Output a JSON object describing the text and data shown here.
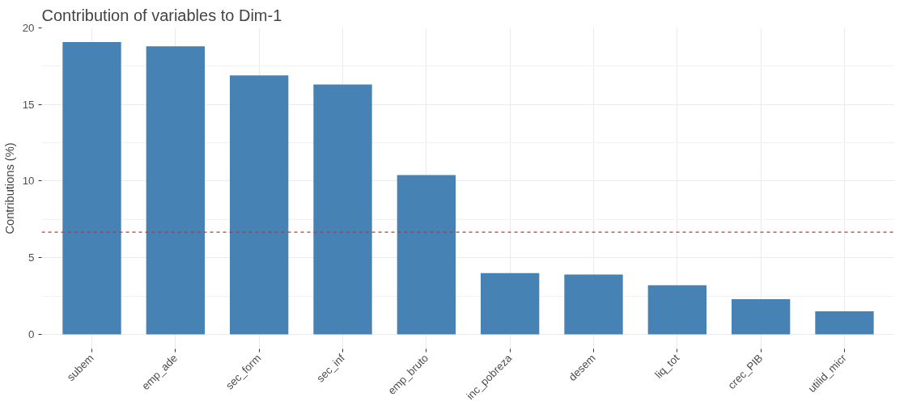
{
  "chart_data": {
    "type": "bar",
    "title": "Contribution of variables to Dim-1",
    "ylabel": "Contributions (%)",
    "categories": [
      "subem",
      "emp_ade",
      "sec_form",
      "sec_inf",
      "emp_bruto",
      "inc_pobreza",
      "desem",
      "liq_tot",
      "crec_PIB",
      "utilid_micr"
    ],
    "values": [
      19.07,
      18.8,
      16.9,
      16.3,
      10.4,
      4.0,
      3.9,
      3.2,
      2.3,
      1.5
    ],
    "color": "#4682b4",
    "ylim": [
      -0.95,
      20.0
    ],
    "yticks": [
      0,
      5,
      10,
      15,
      20
    ],
    "grid": true,
    "ref_lines": [
      {
        "axis": "y",
        "value": 6.67,
        "color": "#c0392b",
        "line_style": "dashed"
      }
    ]
  }
}
